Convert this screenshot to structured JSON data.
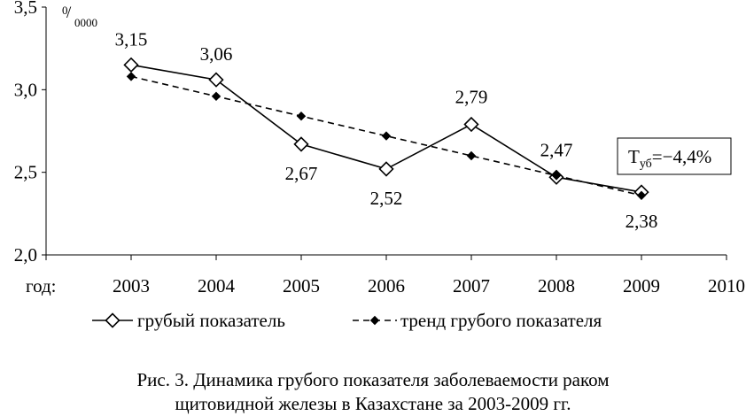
{
  "chart_data": {
    "type": "line",
    "unit_label": {
      "sup": "0",
      "sub": "0000"
    },
    "ylim": [
      2.0,
      3.5
    ],
    "y_ticks": [
      {
        "value": 2.0,
        "label": "2,0"
      },
      {
        "value": 2.5,
        "label": "2,5"
      },
      {
        "value": 3.0,
        "label": "3,0"
      },
      {
        "value": 3.5,
        "label": "3,5"
      }
    ],
    "x_label": "год:",
    "x_ticks": [
      "2003",
      "2004",
      "2005",
      "2006",
      "2007",
      "2008",
      "2009",
      "2010"
    ],
    "series": [
      {
        "name": "грубый показатель",
        "style": "solid",
        "marker": "diamond-open",
        "color": "#000000",
        "x": [
          "2003",
          "2004",
          "2005",
          "2006",
          "2007",
          "2008",
          "2009"
        ],
        "values": [
          3.15,
          3.06,
          2.67,
          2.52,
          2.79,
          2.47,
          2.38
        ],
        "labels": [
          "3,15",
          "3,06",
          "2,67",
          "2,52",
          "2,79",
          "2,47",
          "2,38"
        ]
      },
      {
        "name": "тренд грубого показателя",
        "style": "dashed",
        "marker": "diamond-filled",
        "color": "#000000",
        "x": [
          "2003",
          "2004",
          "2005",
          "2006",
          "2007",
          "2008",
          "2009"
        ],
        "values": [
          3.08,
          2.96,
          2.84,
          2.72,
          2.6,
          2.48,
          2.36
        ]
      }
    ],
    "annotation": {
      "base": "Т",
      "sub": "уб",
      "rest": "=−4,4%"
    },
    "legend_position": "bottom"
  },
  "caption": {
    "line1": "Рис. 3. Динамика грубого показателя заболеваемости раком",
    "line2": "щитовидной железы в Казахстане за 2003-2009 гг."
  }
}
